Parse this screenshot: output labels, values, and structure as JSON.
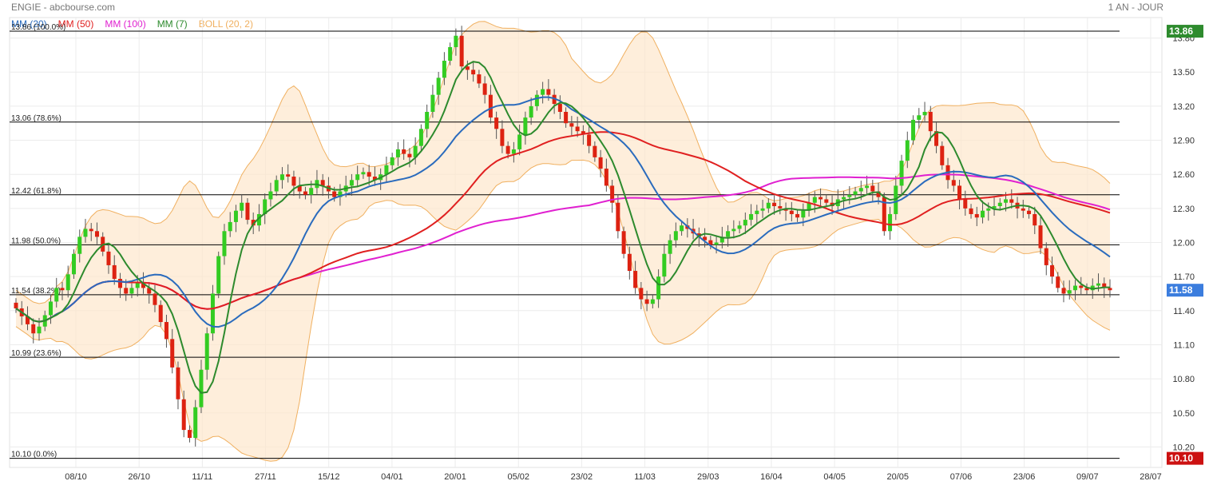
{
  "header": {
    "source": "ENGIE - abcbourse.com",
    "period": "1 AN - JOUR"
  },
  "legend": [
    {
      "label": "MM (20)",
      "color": "#2a6bbd"
    },
    {
      "label": "MM (50)",
      "color": "#e02020"
    },
    {
      "label": "MM (100)",
      "color": "#e020d0"
    },
    {
      "label": "MM (7)",
      "color": "#2d8a2d"
    },
    {
      "label": "BOLL (20, 2)",
      "color": "#f0b060"
    }
  ],
  "chart_data": {
    "type": "candlestick",
    "ylim": [
      10.02,
      13.98
    ],
    "y_ticks": [
      "13.80",
      "13.50",
      "13.20",
      "12.90",
      "12.60",
      "12.30",
      "12.00",
      "11.70",
      "11.40",
      "11.10",
      "10.80",
      "10.50",
      "10.20"
    ],
    "x_ticks": [
      "08/10",
      "26/10",
      "11/11",
      "27/11",
      "15/12",
      "04/01",
      "20/01",
      "05/02",
      "23/02",
      "11/03",
      "29/03",
      "16/04",
      "04/05",
      "20/05",
      "07/06",
      "23/06",
      "09/07",
      "28/07"
    ],
    "fibonacci": [
      {
        "label": "13.86",
        "pct": "(100.0%)",
        "value": 13.86
      },
      {
        "label": "13.06",
        "pct": "(78.6%)",
        "value": 13.06
      },
      {
        "label": "12.42",
        "pct": "(61.8%)",
        "value": 12.42
      },
      {
        "label": "11.98",
        "pct": "(50.0%)",
        "value": 11.98
      },
      {
        "label": "11.54",
        "pct": "(38.2%)",
        "value": 11.54
      },
      {
        "label": "10.99",
        "pct": "(23.6%)",
        "value": 10.99
      },
      {
        "label": "10.10",
        "pct": "(0.0%)",
        "value": 10.1
      }
    ],
    "price_markers": [
      {
        "label": "13.86",
        "value": 13.86,
        "color": "#2e8b2e"
      },
      {
        "label": "11.58",
        "value": 11.58,
        "color": "#3b7dde"
      },
      {
        "label": "10.10",
        "value": 10.1,
        "color": "#cc1111"
      }
    ],
    "closes": [
      11.42,
      11.35,
      11.28,
      11.2,
      11.26,
      11.36,
      11.48,
      11.6,
      11.58,
      11.72,
      11.9,
      12.05,
      12.12,
      12.1,
      12.05,
      11.92,
      11.8,
      11.68,
      11.6,
      11.55,
      11.6,
      11.65,
      11.6,
      11.55,
      11.45,
      11.3,
      11.15,
      10.9,
      10.62,
      10.35,
      10.28,
      10.55,
      10.88,
      11.2,
      11.55,
      11.88,
      12.1,
      12.18,
      12.28,
      12.35,
      12.2,
      12.15,
      12.25,
      12.38,
      12.45,
      12.55,
      12.6,
      12.58,
      12.5,
      12.45,
      12.42,
      12.48,
      12.55,
      12.5,
      12.45,
      12.4,
      12.45,
      12.5,
      12.55,
      12.6,
      12.62,
      12.58,
      12.55,
      12.6,
      12.68,
      12.75,
      12.82,
      12.78,
      12.75,
      12.85,
      13.0,
      13.15,
      13.3,
      13.45,
      13.6,
      13.72,
      13.82,
      13.55,
      13.52,
      13.48,
      13.4,
      13.3,
      13.1,
      13.0,
      12.85,
      12.78,
      12.82,
      12.95,
      13.1,
      13.2,
      13.3,
      13.35,
      13.3,
      13.22,
      13.15,
      13.05,
      13.02,
      12.98,
      12.95,
      12.85,
      12.75,
      12.65,
      12.5,
      12.35,
      12.1,
      11.9,
      11.75,
      11.6,
      11.5,
      11.46,
      11.5,
      11.7,
      11.9,
      12.02,
      12.1,
      12.15,
      12.12,
      12.08,
      12.05,
      12.02,
      11.98,
      12.0,
      12.05,
      12.1,
      12.12,
      12.15,
      12.2,
      12.25,
      12.28,
      12.3,
      12.35,
      12.32,
      12.3,
      12.28,
      12.25,
      12.22,
      12.28,
      12.35,
      12.4,
      12.38,
      12.35,
      12.32,
      12.38,
      12.4,
      12.42,
      12.45,
      12.48,
      12.5,
      12.45,
      12.4,
      12.1,
      12.25,
      12.5,
      12.72,
      12.9,
      13.08,
      13.12,
      13.15,
      12.98,
      12.85,
      12.68,
      12.55,
      12.5,
      12.38,
      12.3,
      12.25,
      12.22,
      12.28,
      12.3,
      12.32,
      12.35,
      12.38,
      12.35,
      12.3,
      12.28,
      12.25,
      12.15,
      11.95,
      11.8,
      11.7,
      11.6,
      11.55,
      11.58,
      11.62,
      11.6,
      11.58,
      11.62,
      11.64,
      11.6,
      11.58
    ]
  }
}
